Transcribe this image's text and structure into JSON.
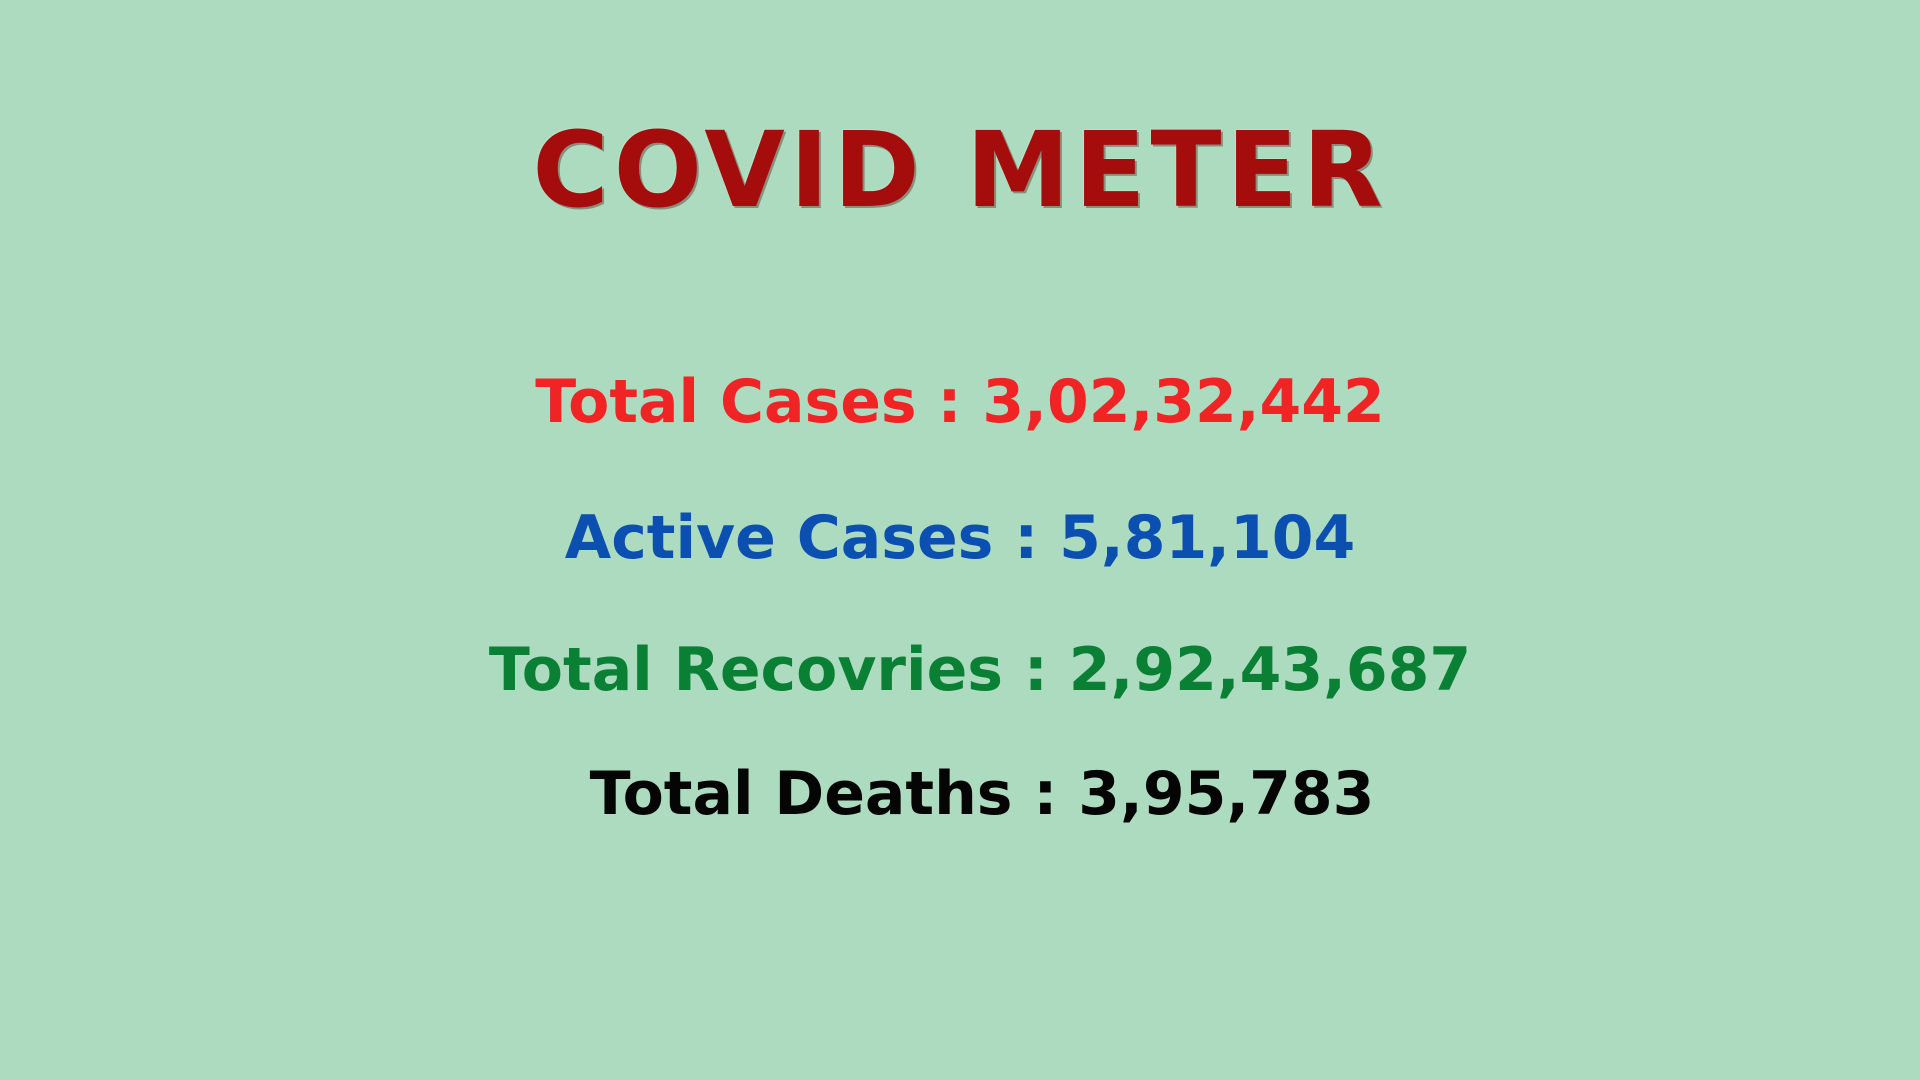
{
  "background_color": "#addbbf",
  "title": {
    "text": "COVID METER",
    "color": "#a50d0d"
  },
  "stats": [
    {
      "label": "Total Cases",
      "value": "3,02,32,442",
      "color": "#f02424"
    },
    {
      "label": "Active Cases",
      "value": "5,81,104",
      "color": "#0b4fb0"
    },
    {
      "label": "Total Recovries",
      "value": "2,92,43,687",
      "color": "#0a8035"
    },
    {
      "label": "Total Deaths",
      "value": "3,95,783",
      "color": "#050505"
    }
  ]
}
